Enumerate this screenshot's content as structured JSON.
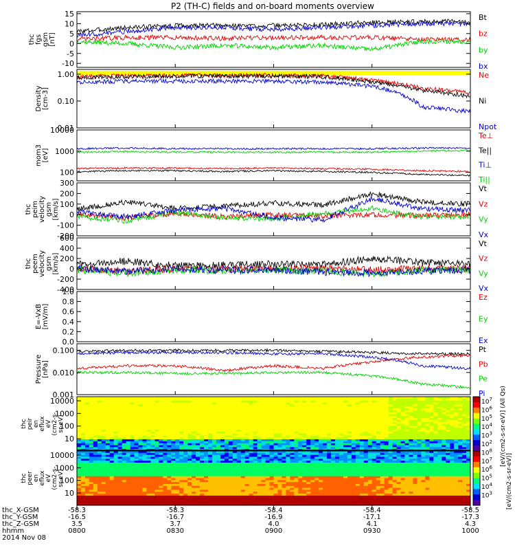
{
  "title": "P2 (TH-C) fields and on-board moments overview",
  "colors": {
    "black": "#000000",
    "red": "#e00000",
    "green": "#00d000",
    "blue": "#0000c8",
    "yellow": "#ffff00"
  },
  "x_axis": {
    "ticks": [
      "0800",
      "0830",
      "0900",
      "0930",
      "1000"
    ],
    "rows": [
      {
        "label": "thc_X-GSM",
        "values": [
          "-58.3",
          "-58.3",
          "-58.4",
          "-58.4",
          "-58.5"
        ]
      },
      {
        "label": "thc_Y-GSM",
        "values": [
          "-16.5",
          "-16.7",
          "-16.9",
          "-17.1",
          "-17.3"
        ]
      },
      {
        "label": "thc_Z-GSM",
        "values": [
          "3.5",
          "3.7",
          "4.0",
          "4.1",
          "4.3"
        ]
      },
      {
        "label": "hhmm",
        "values": [
          "0800",
          "0830",
          "0900",
          "0930",
          "1000"
        ]
      }
    ],
    "date": "2014 Nov 08"
  },
  "chart_data": [
    {
      "type": "line",
      "panel": "fgs",
      "ylabel": [
        "thc",
        "fgs",
        "gsm",
        "[nT]"
      ],
      "ylim": [
        -12,
        16
      ],
      "yticks": [
        "15",
        "10",
        "5",
        "0",
        "-5",
        "-10"
      ],
      "ytick_values": [
        15,
        10,
        5,
        0,
        -5,
        -10
      ],
      "legend": [
        "Bt",
        "bz",
        "by",
        "bx"
      ],
      "series": [
        {
          "name": "Bt",
          "level": [
            6,
            8,
            9,
            9,
            9,
            9.5,
            10.5,
            11,
            11
          ]
        },
        {
          "name": "bz",
          "level": [
            2,
            3,
            3,
            2.5,
            3,
            3,
            3,
            2,
            2
          ]
        },
        {
          "name": "by",
          "level": [
            1,
            0,
            -2,
            -1,
            -2,
            -1,
            -3,
            1,
            1
          ]
        },
        {
          "name": "bx",
          "level": [
            4,
            6,
            8,
            8,
            7,
            8,
            9,
            10,
            10
          ]
        }
      ]
    },
    {
      "type": "line",
      "panel": "density",
      "ylabel": [
        "Density",
        "[cm-3]"
      ],
      "yscale": "log",
      "ylim": [
        0.01,
        1.5
      ],
      "yticks": [
        "1.00",
        "0.10",
        "0.01"
      ],
      "ytick_values": [
        1,
        0.1,
        0.01
      ],
      "legend": [
        "Ne",
        "Ni",
        "Npot"
      ],
      "series": [
        {
          "name": "Ne",
          "level": [
            0.8,
            0.85,
            0.9,
            0.9,
            0.9,
            0.85,
            0.6,
            0.3,
            0.2
          ]
        },
        {
          "name": "Ni",
          "level": [
            0.75,
            0.8,
            0.85,
            0.85,
            0.85,
            0.8,
            0.5,
            0.25,
            0.15
          ]
        },
        {
          "name": "Npot",
          "level": [
            0.5,
            0.55,
            0.55,
            0.55,
            0.55,
            0.5,
            0.35,
            0.06,
            0.04
          ]
        }
      ]
    },
    {
      "type": "line",
      "panel": "temperature",
      "ylabel": [
        "mom3",
        "[eV]"
      ],
      "yscale": "log",
      "ylim": [
        40,
        10000
      ],
      "yticks": [
        "10000",
        "1000",
        "100"
      ],
      "ytick_values": [
        10000,
        1000,
        100
      ],
      "legend": [
        "Te⊥",
        "Te||",
        "Ti⊥",
        "Ti||"
      ],
      "series": [
        {
          "name": "Te⊥",
          "level": [
            150,
            160,
            160,
            150,
            160,
            150,
            140,
            120,
            110
          ]
        },
        {
          "name": "Te||",
          "level": [
            110,
            120,
            120,
            110,
            120,
            110,
            100,
            80,
            70
          ]
        },
        {
          "name": "Ti⊥",
          "level": [
            1300,
            1400,
            1300,
            1300,
            1300,
            1300,
            1300,
            1400,
            1400
          ]
        },
        {
          "name": "Ti||",
          "level": [
            900,
            950,
            900,
            900,
            900,
            900,
            900,
            1000,
            1100
          ]
        }
      ]
    },
    {
      "type": "line",
      "panel": "peim velocity",
      "ylabel": [
        "thc",
        "peim",
        "velocity",
        "gsm",
        "[km/s]"
      ],
      "ylim": [
        -200,
        300
      ],
      "yticks": [
        "300",
        "200",
        "100",
        "0",
        "-100",
        "-200"
      ],
      "ytick_values": [
        300,
        200,
        100,
        0,
        -100,
        -200
      ],
      "legend": [
        "Vt",
        "Vz",
        "Vy",
        "Vx"
      ],
      "series": [
        {
          "name": "Vt",
          "level": [
            50,
            120,
            60,
            80,
            110,
            90,
            200,
            120,
            100
          ]
        },
        {
          "name": "Vz",
          "level": [
            0,
            -30,
            10,
            -20,
            0,
            -10,
            0,
            -10,
            0
          ]
        },
        {
          "name": "Vy",
          "level": [
            -20,
            -60,
            20,
            -30,
            -40,
            10,
            60,
            -20,
            -20
          ]
        },
        {
          "name": "Vx",
          "level": [
            30,
            -20,
            40,
            60,
            -30,
            -50,
            150,
            60,
            40
          ]
        }
      ]
    },
    {
      "type": "line",
      "panel": "peem velocity",
      "ylabel": [
        "thc",
        "peem",
        "velocity",
        "gsm",
        "[km/s]"
      ],
      "ylim": [
        -400,
        600
      ],
      "yticks": [
        "600",
        "400",
        "200",
        "0",
        "-200",
        "-400"
      ],
      "ytick_values": [
        600,
        400,
        200,
        0,
        -200,
        -400
      ],
      "legend": [
        "Vt",
        "Vz",
        "Vy",
        "Vx"
      ],
      "series": [
        {
          "name": "Vt",
          "level": [
            80,
            150,
            60,
            80,
            90,
            80,
            200,
            120,
            100
          ]
        },
        {
          "name": "Vz",
          "level": [
            0,
            -50,
            0,
            -10,
            0,
            0,
            -20,
            0,
            0
          ]
        },
        {
          "name": "Vy",
          "level": [
            -20,
            -80,
            -20,
            -40,
            -30,
            -40,
            -100,
            -30,
            -20
          ]
        },
        {
          "name": "Vx",
          "level": [
            20,
            -60,
            10,
            -30,
            -20,
            -60,
            -80,
            -40,
            -30
          ]
        }
      ]
    },
    {
      "type": "line",
      "panel": "E",
      "ylabel": [
        "E=-VxB",
        "[mV/m]"
      ],
      "ylim": [
        0,
        1
      ],
      "yticks": [
        "1.0",
        "0.8",
        "0.6",
        "0.4",
        "0.2",
        "0.0"
      ],
      "ytick_values": [
        1,
        0.8,
        0.6,
        0.4,
        0.2,
        0
      ],
      "legend": [
        "Ez",
        "Ey",
        "Ex"
      ],
      "series": []
    },
    {
      "type": "line",
      "panel": "pressure",
      "ylabel": [
        "Pressure",
        "[nPa]"
      ],
      "yscale": "log",
      "ylim": [
        0.001,
        0.2
      ],
      "yticks": [
        "0.100",
        "0.010",
        "0.001"
      ],
      "ytick_values": [
        0.1,
        0.01,
        0.001
      ],
      "legend": [
        "Pt",
        "Pb",
        "Pe",
        "Pi"
      ],
      "series": [
        {
          "name": "Pt",
          "level": [
            0.09,
            0.1,
            0.1,
            0.1,
            0.1,
            0.09,
            0.08,
            0.07,
            0.07
          ]
        },
        {
          "name": "Pb",
          "level": [
            0.015,
            0.02,
            0.02,
            0.012,
            0.02,
            0.015,
            0.03,
            0.05,
            0.06
          ]
        },
        {
          "name": "Pe",
          "level": [
            0.01,
            0.01,
            0.009,
            0.009,
            0.01,
            0.01,
            0.007,
            0.003,
            0.002
          ]
        },
        {
          "name": "Pi",
          "level": [
            0.07,
            0.08,
            0.08,
            0.08,
            0.07,
            0.07,
            0.05,
            0.02,
            0.015
          ]
        }
      ]
    },
    {
      "type": "heatmap",
      "panel": "peir",
      "ylabel": [
        "thc",
        "peir",
        "en",
        "eflux",
        "eV",
        "(cm2-s-",
        "sr-eV)"
      ],
      "yscale": "log",
      "yticks": [
        "10000",
        "1000",
        "100",
        "10"
      ],
      "ytick_values": [
        10000,
        1000,
        100,
        10
      ]
    },
    {
      "type": "heatmap",
      "panel": "peer",
      "ylabel": [
        "thc",
        "peer",
        "en",
        "eflux",
        "eV",
        "(cm2-s-",
        "sr-eV)"
      ],
      "yscale": "log",
      "yticks": [
        "10000",
        "1000",
        "100",
        "10"
      ],
      "ytick_values": [
        10000,
        1000,
        100,
        10
      ]
    }
  ],
  "colorbar": {
    "ticks": [
      "10",
      "10",
      "10",
      "10",
      "10",
      "10",
      "10",
      "10",
      "10",
      "10",
      "10",
      "10"
    ],
    "exponents": [
      "7",
      "6",
      "5",
      "4",
      "3",
      "2",
      "8",
      "7",
      "6",
      "5",
      "4",
      "3"
    ],
    "label_upper": "[eV/(cm2-s-sr-eV)] (All Qs)",
    "label_lower": "[eV/(cm2-s-sr-eV)]"
  }
}
